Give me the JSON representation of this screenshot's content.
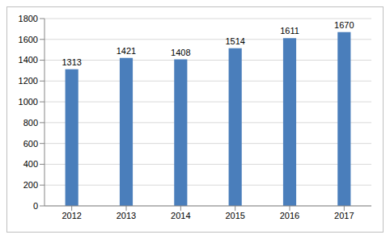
{
  "chart_data": {
    "type": "bar",
    "categories": [
      "2012",
      "2013",
      "2014",
      "2015",
      "2016",
      "2017"
    ],
    "values": [
      1313,
      1421,
      1408,
      1514,
      1611,
      1670
    ],
    "color": "#4a7ebb",
    "ylim": [
      0,
      1800
    ],
    "yticks": [
      0,
      200,
      400,
      600,
      800,
      1000,
      1200,
      1400,
      1600,
      1800
    ],
    "grid": true,
    "data_labels": true
  }
}
